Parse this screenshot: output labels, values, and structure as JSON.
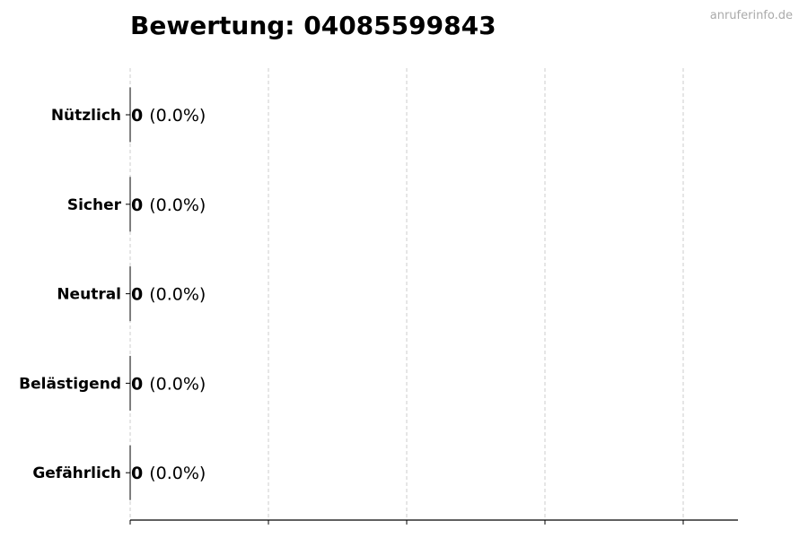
{
  "chart_data": {
    "type": "bar",
    "orientation": "horizontal",
    "title": "Bewertung: 04085599843",
    "watermark": "anruferinfo.de",
    "categories": [
      "Nützlich",
      "Sicher",
      "Neutral",
      "Belästigend",
      "Gefährlich"
    ],
    "values": [
      0,
      0,
      0,
      0,
      0
    ],
    "value_labels": [
      "0",
      "0",
      "0",
      "0",
      "0"
    ],
    "percent_labels": [
      "(0.0%)",
      "(0.0%)",
      "(0.0%)",
      "(0.0%)",
      "(0.0%)"
    ],
    "xlabel": "",
    "ylabel": "",
    "x_ticks_labeled": false,
    "grid": "vertical dashed",
    "bar_edge_color": "#000000",
    "grid_color": "#cccccc"
  }
}
